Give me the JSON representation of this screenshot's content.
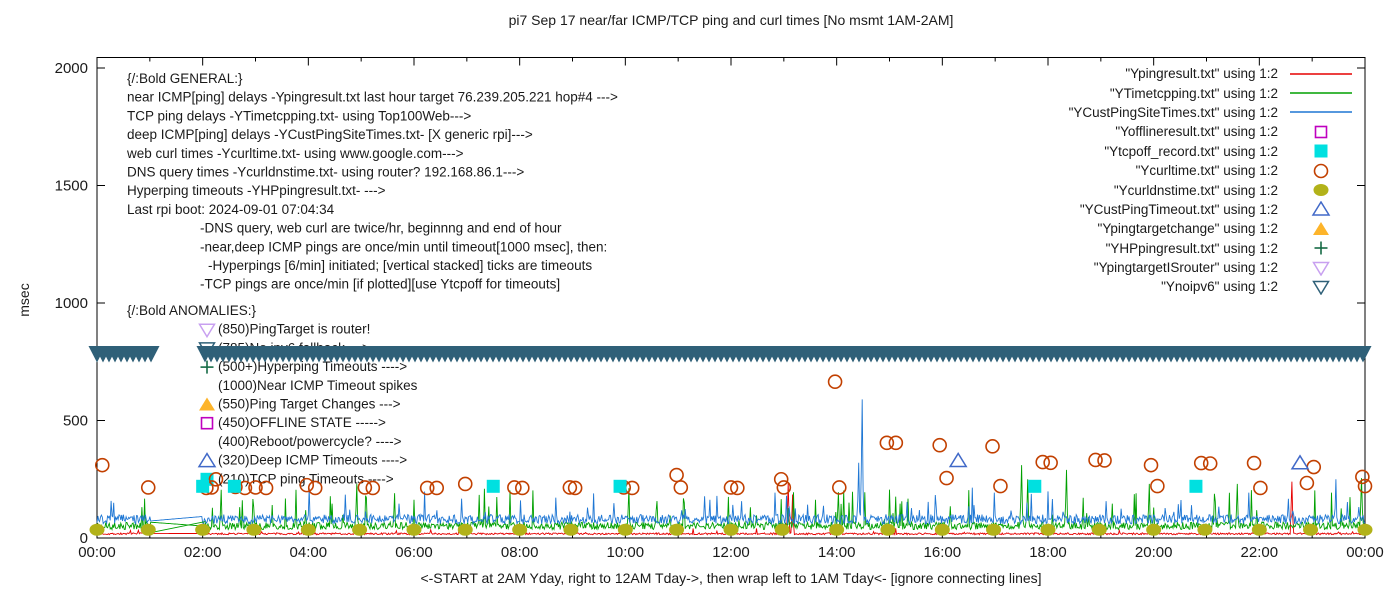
{
  "title": "pi7 Sep 17  near/far ICMP/TCP ping and curl times [No msmt 1AM-2AM]",
  "axes": {
    "ylabel": "msec",
    "xlabel": "<-START at 2AM Yday, right to 12AM Tday->, then wrap left to 1AM Tday<- [ignore connecting lines]",
    "y_ticks": [
      0,
      500,
      1000,
      1500,
      2000
    ],
    "x_ticks": [
      "00:00",
      "02:00",
      "04:00",
      "06:00",
      "08:00",
      "10:00",
      "12:00",
      "14:00",
      "16:00",
      "18:00",
      "20:00",
      "22:00",
      "00:00"
    ],
    "x_hours": 24,
    "y_max": 2000
  },
  "legend": [
    {
      "label": "\"Ypingresult.txt\" using 1:2",
      "marker": "line",
      "color": "#e60000"
    },
    {
      "label": "\"YTimetcpping.txt\" using 1:2",
      "marker": "line",
      "color": "#00a000"
    },
    {
      "label": "\"YCustPingSiteTimes.txt\" using 1:2",
      "marker": "line",
      "color": "#1f77d4"
    },
    {
      "label": "\"Yofflineresult.txt\" using 1:2",
      "marker": "sq-open",
      "color": "#bf00bf"
    },
    {
      "label": "\"Ytcpoff_record.txt\" using 1:2",
      "marker": "sq-filled",
      "color": "#00e0e0"
    },
    {
      "label": "\"Ycurltime.txt\" using 1:2",
      "marker": "circle-open",
      "color": "#c24000"
    },
    {
      "label": "\"Ycurldnstime.txt\" using 1:2",
      "marker": "circle-filled",
      "color": "#b2b219"
    },
    {
      "label": "\"YCustPingTimeout.txt\" using 1:2",
      "marker": "tri-up-open",
      "color": "#4169c8"
    },
    {
      "label": "\"Ypingtargetchange\" using 1:2",
      "marker": "tri-up-filled",
      "color": "#fdb42a"
    },
    {
      "label": "\"YHPpingresult.txt\" using 1:2",
      "marker": "plus",
      "color": "#156b45"
    },
    {
      "label": "\"YpingtargetISrouter\" using 1:2",
      "marker": "tri-down-open",
      "color": "#c8a0f0"
    },
    {
      "label": "\"Ynoipv6\" using 1:2",
      "marker": "tri-down-open",
      "color": "#2f6078"
    }
  ],
  "annotations": {
    "general": [
      {
        "text": "{/:Bold GENERAL:}",
        "indent": 0
      },
      {
        "text": "near ICMP[ping] delays -Ypingresult.txt last hour target 76.239.205.221 hop#4 --->",
        "indent": 0
      },
      {
        "text": "TCP ping delays -YTimetcpping.txt- using Top100Web--->",
        "indent": 0
      },
      {
        "text": "deep ICMP[ping] delays -YCustPingSiteTimes.txt- [X generic rpi]--->",
        "indent": 0
      },
      {
        "text": "web curl times -Ycurltime.txt- using www.google.com--->",
        "indent": 0
      },
      {
        "text": "DNS query times -Ycurldnstime.txt- using router? 192.168.86.1--->",
        "indent": 0
      },
      {
        "text": "Hyperping timeouts -YHPpingresult.txt- --->",
        "indent": 0
      },
      {
        "text": "Last rpi boot: 2024-09-01 07:04:34",
        "indent": 0
      },
      {
        "text": "-DNS query, web curl are twice/hr, beginnng and end of hour",
        "indent": 1
      },
      {
        "text": "-near,deep ICMP pings are once/min until timeout[1000 msec], then:",
        "indent": 1
      },
      {
        "text": "-Hyperpings [6/min] initiated; [vertical stacked] ticks are timeouts",
        "indent": 2
      },
      {
        "text": "-TCP pings are once/min [if plotted][use Ytcpoff for timeouts]",
        "indent": 1
      }
    ],
    "anomalies": [
      {
        "text": "{/:Bold ANOMALIES:}",
        "markers": []
      },
      {
        "text": "(850)PingTarget is router!",
        "markers": [
          "tri-down-violet"
        ]
      },
      {
        "text": "(785)No ipv6 fallback --->",
        "markers": [
          "tri-down-teal"
        ]
      },
      {
        "text": "(500+)Hyperping Timeouts ---->",
        "markers": [
          "plus-green"
        ]
      },
      {
        "text": "(1000)Near ICMP Timeout spikes",
        "markers": []
      },
      {
        "text": "(550)Ping Target Changes --->",
        "markers": [
          "tri-up-gold"
        ]
      },
      {
        "text": "(450)OFFLINE STATE ----->",
        "markers": [
          "sq-open-magenta"
        ]
      },
      {
        "text": "(400)Reboot/powercycle? ---->",
        "markers": []
      },
      {
        "text": "(320)Deep ICMP Timeouts ---->",
        "markers": [
          "tri-up-blue"
        ]
      },
      {
        "text": "(210)TCP ping Timeouts ---->",
        "markers": [
          "sq-cyan",
          "circle-orange"
        ]
      }
    ]
  },
  "chart_data": {
    "type": "line",
    "title": "pi7 Sep 17  near/far ICMP/TCP ping and curl times [No msmt 1AM-2AM]",
    "xlabel": "<-START at 2AM Yday, right to 12AM Tday->, then wrap left to 1AM Tday<- [ignore connecting lines]",
    "ylabel": "msec",
    "xlim": [
      0,
      24
    ],
    "ylim": [
      0,
      2000
    ],
    "grid": false,
    "legend_position": "top-right-inside",
    "no_measurement_gap_hours": [
      1.03,
      1.97
    ],
    "noise_seed": 7,
    "line_series": [
      {
        "name": "Ypingresult near ICMP ping",
        "color": "#e60000",
        "baseline": 18,
        "noise": 4,
        "spike_rate": 0.02,
        "spike_max": 22,
        "spikes": [
          [
            13.08,
            235
          ],
          [
            13.17,
            185
          ],
          [
            22.62,
            240
          ]
        ]
      },
      {
        "name": "YTimetcpping TCP ping",
        "color": "#00a000",
        "baseline": 52,
        "noise": 16,
        "spike_rate": 0.07,
        "spike_max": 150,
        "spikes": [
          [
            2.35,
            205
          ],
          [
            4.92,
            230
          ],
          [
            10.07,
            212
          ],
          [
            14.03,
            195
          ],
          [
            17.5,
            310
          ],
          [
            17.62,
            250
          ],
          [
            18.35,
            290
          ],
          [
            19.92,
            230
          ],
          [
            21.58,
            230
          ],
          [
            23.93,
            255
          ]
        ]
      },
      {
        "name": "YCustPingSiteTimes deep ICMP ping",
        "color": "#1f77d4",
        "baseline": 80,
        "noise": 20,
        "spike_rate": 0.05,
        "spike_max": 120,
        "spikes": [
          [
            0.32,
            150
          ],
          [
            14.42,
            320
          ],
          [
            14.48,
            590
          ],
          [
            23.45,
            250
          ]
        ]
      }
    ],
    "connector_artifact": {
      "color": "#00a000",
      "from": [
        1.0,
        22
      ],
      "to": [
        2.05,
        70
      ]
    },
    "scatter_series": [
      {
        "name": "Ycurltime web curl",
        "marker": "circle-open",
        "color": "#c24000",
        "points": [
          [
            0.1,
            310
          ],
          [
            0.97,
            215
          ],
          [
            2.07,
            213
          ],
          [
            2.17,
            215
          ],
          [
            2.62,
            217
          ],
          [
            2.8,
            213
          ],
          [
            3.0,
            215
          ],
          [
            3.2,
            213
          ],
          [
            3.97,
            225
          ],
          [
            4.13,
            213
          ],
          [
            5.07,
            215
          ],
          [
            5.22,
            213
          ],
          [
            6.25,
            213
          ],
          [
            6.43,
            213
          ],
          [
            6.97,
            230
          ],
          [
            7.9,
            215
          ],
          [
            8.05,
            213
          ],
          [
            8.95,
            215
          ],
          [
            9.05,
            213
          ],
          [
            9.97,
            215
          ],
          [
            10.13,
            213
          ],
          [
            10.97,
            268
          ],
          [
            11.05,
            215
          ],
          [
            12.0,
            215
          ],
          [
            12.12,
            213
          ],
          [
            12.95,
            250
          ],
          [
            13.0,
            215
          ],
          [
            13.97,
            665
          ],
          [
            14.05,
            215
          ],
          [
            14.95,
            405
          ],
          [
            15.12,
            405
          ],
          [
            15.95,
            395
          ],
          [
            16.08,
            255
          ],
          [
            16.95,
            390
          ],
          [
            17.1,
            221
          ],
          [
            17.9,
            323
          ],
          [
            18.05,
            320
          ],
          [
            18.9,
            332
          ],
          [
            19.07,
            330
          ],
          [
            19.95,
            310
          ],
          [
            20.07,
            221
          ],
          [
            20.9,
            319
          ],
          [
            21.07,
            317
          ],
          [
            21.9,
            319
          ],
          [
            22.02,
            213
          ],
          [
            22.9,
            234
          ],
          [
            23.03,
            302
          ],
          [
            23.95,
            260
          ],
          [
            24.0,
            221
          ]
        ]
      },
      {
        "name": "Ycurldnstime DNS query",
        "marker": "circle-filled",
        "color": "#b2b219",
        "points": [
          [
            0,
            35
          ],
          [
            0.97,
            35
          ],
          [
            2,
            35
          ],
          [
            2.97,
            35
          ],
          [
            4,
            35
          ],
          [
            4.97,
            35
          ],
          [
            6,
            35
          ],
          [
            6.97,
            35
          ],
          [
            8,
            35
          ],
          [
            8.97,
            35
          ],
          [
            10,
            35
          ],
          [
            10.97,
            35
          ],
          [
            12,
            35
          ],
          [
            12.97,
            35
          ],
          [
            14,
            35
          ],
          [
            14.97,
            35
          ],
          [
            16,
            35
          ],
          [
            16.97,
            35
          ],
          [
            18,
            35
          ],
          [
            18.97,
            35
          ],
          [
            20,
            35
          ],
          [
            20.97,
            35
          ],
          [
            22,
            35
          ],
          [
            22.97,
            35
          ],
          [
            24,
            35
          ]
        ]
      },
      {
        "name": "Ytcpoff_record TCP ping timeouts",
        "marker": "sq-filled",
        "color": "#00e0e0",
        "points": [
          [
            2.0,
            220
          ],
          [
            2.6,
            220
          ],
          [
            7.5,
            220
          ],
          [
            9.9,
            220
          ],
          [
            17.75,
            220
          ],
          [
            20.8,
            220
          ]
        ]
      },
      {
        "name": "YCustPingTimeout deep ICMP timeouts",
        "marker": "tri-up-open",
        "color": "#4169c8",
        "points": [
          [
            16.3,
            330
          ],
          [
            22.77,
            320
          ]
        ]
      }
    ],
    "band": {
      "name": "Ynoipv6 row of stacked down-triangle ticks",
      "color": "#2f6078",
      "value": 780,
      "span_hours": [
        0,
        24
      ],
      "gap_hours": [
        1.03,
        1.97
      ]
    }
  }
}
